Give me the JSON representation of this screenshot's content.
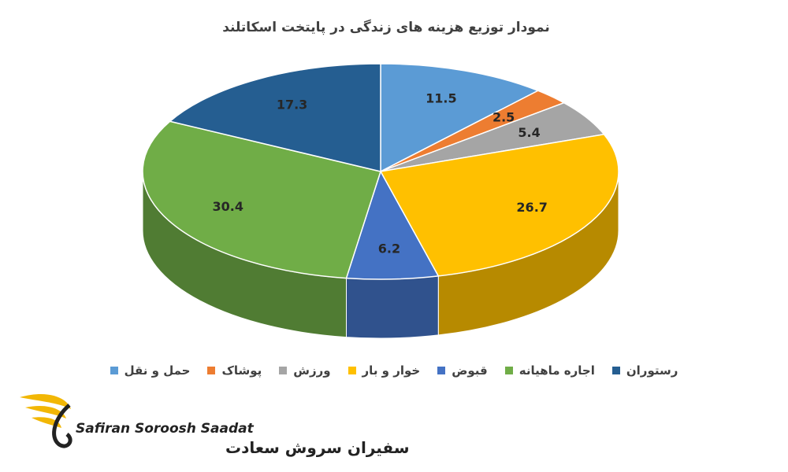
{
  "chart_data": {
    "type": "pie3d",
    "title": "نمودار توزیع هزینه های زندگی در پایتخت اسکاتلند",
    "categories": [
      "حمل و نقل",
      "پوشاک",
      "ورزش",
      "خوار و بار",
      "قبوض",
      "اجاره ماهیانه",
      "رستوران"
    ],
    "values": [
      11.5,
      2.5,
      5.4,
      26.7,
      6.2,
      30.4,
      17.3
    ],
    "colors": [
      "#5b9bd5",
      "#ed7d31",
      "#a5a5a5",
      "#ffc000",
      "#4472c4",
      "#70ad47",
      "#255e91"
    ]
  },
  "logo": {
    "latin": "Safiran Soroosh Saadat",
    "persian": "سفیران سروش سعادت"
  }
}
